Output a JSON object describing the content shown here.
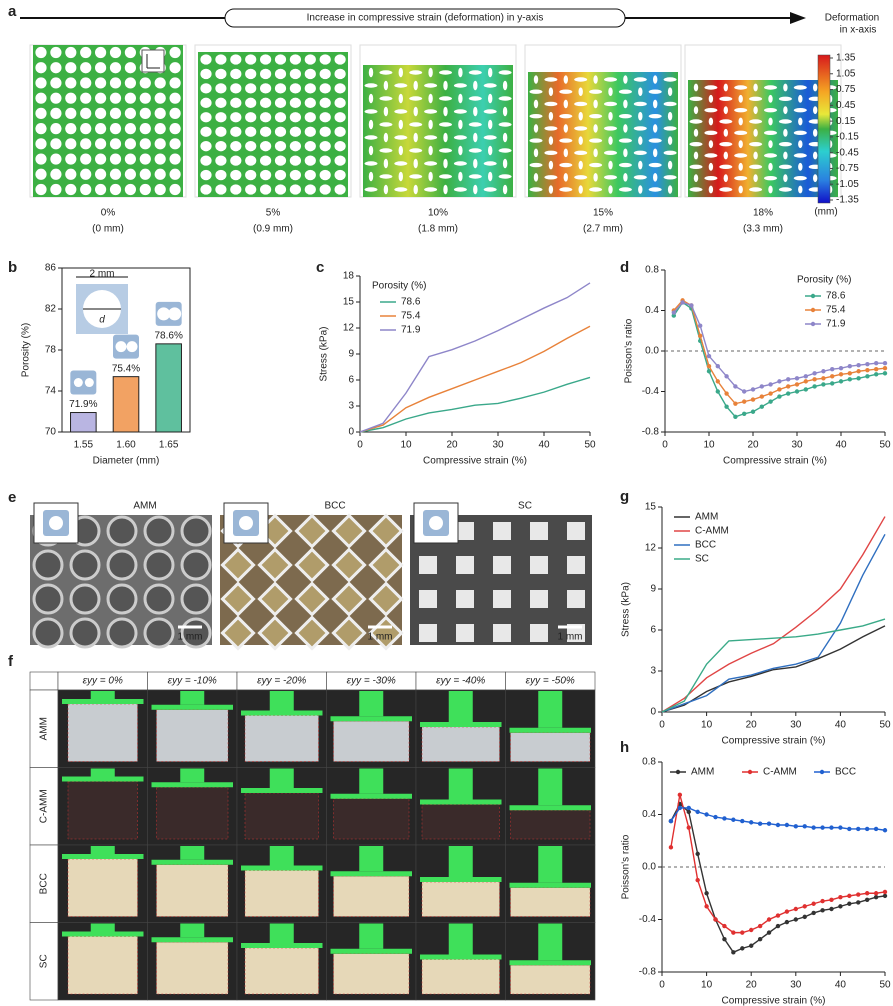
{
  "figure": {
    "panel_a": {
      "letter": "a",
      "arrow_label": "Increase in compressive strain (deformation) in y-axis",
      "colorbar_title_1": "Deformation",
      "colorbar_title_2": "in x-axis",
      "colorbar_ticks": [
        1.35,
        1.05,
        0.75,
        0.45,
        0.15,
        -0.15,
        -0.45,
        -0.75,
        -1.05,
        -1.35
      ],
      "colorbar_unit": "(mm)",
      "frames": [
        {
          "strain": "0%",
          "displacement": "(0 mm)"
        },
        {
          "strain": "5%",
          "displacement": "(0.9 mm)"
        },
        {
          "strain": "10%",
          "displacement": "(1.8 mm)"
        },
        {
          "strain": "15%",
          "displacement": "(2.7 mm)"
        },
        {
          "strain": "18%",
          "displacement": "(3.3 mm)"
        }
      ]
    },
    "panel_e": {
      "letter": "e",
      "photos": [
        {
          "label": "AMM",
          "scale": "1 mm"
        },
        {
          "label": "BCC",
          "scale": "1 mm"
        },
        {
          "label": "SC",
          "scale": "1 mm"
        }
      ]
    },
    "panel_f": {
      "letter": "f",
      "columns": [
        "εyy = 0%",
        "εyy = -10%",
        "εyy = -20%",
        "εyy = -30%",
        "εyy = -40%",
        "εyy = -50%"
      ],
      "rows": [
        "AMM",
        "C-AMM",
        "BCC",
        "SC"
      ]
    }
  },
  "chart_data": [
    {
      "type": "bar",
      "letter": "b",
      "categories": [
        "1.55",
        "1.60",
        "1.65"
      ],
      "values": [
        71.9,
        75.4,
        78.6
      ],
      "value_labels": [
        "71.9%",
        "75.4%",
        "78.6%"
      ],
      "colors": [
        "#b9b5e2",
        "#f2a263",
        "#5fc09e"
      ],
      "ylim": [
        70,
        86
      ],
      "yticks": [
        70,
        74,
        78,
        82,
        86
      ],
      "xlabel": "Diameter (mm)",
      "ylabel": "Porosity (%)",
      "inset_width_label": "2 mm",
      "inset_diameter_label": "d"
    },
    {
      "type": "line",
      "letter": "c",
      "x": [
        0,
        5,
        10,
        15,
        20,
        25,
        30,
        35,
        40,
        45,
        50
      ],
      "xlim": [
        0,
        50
      ],
      "xticks": [
        0,
        10,
        20,
        30,
        40,
        50
      ],
      "ylim": [
        0,
        18
      ],
      "yticks": [
        0,
        3,
        6,
        9,
        12,
        15,
        18
      ],
      "xlabel": "Compressive strain (%)",
      "ylabel": "Stress (kPa)",
      "legend": "upper left",
      "legend_title": "Porosity (%)",
      "markers": false,
      "series": [
        {
          "name": "78.6",
          "color": "#3aa88a",
          "values": [
            0,
            0.5,
            1.5,
            2.2,
            2.6,
            3.1,
            3.3,
            3.9,
            4.6,
            5.5,
            6.3
          ]
        },
        {
          "name": "75.4",
          "color": "#e8823a",
          "values": [
            0,
            0.8,
            2.8,
            4,
            5,
            6,
            7,
            8,
            9.3,
            10.8,
            12.2
          ]
        },
        {
          "name": "71.9",
          "color": "#8e86c9",
          "values": [
            0,
            1,
            4.5,
            8.7,
            9.5,
            10.5,
            11.7,
            13,
            14.3,
            15.5,
            17.2
          ]
        }
      ]
    },
    {
      "type": "line",
      "letter": "d",
      "x": [
        2,
        4,
        6,
        8,
        10,
        12,
        14,
        16,
        18,
        20,
        22,
        24,
        26,
        28,
        30,
        32,
        34,
        36,
        38,
        40,
        42,
        44,
        46,
        48,
        50
      ],
      "xlim": [
        0,
        50
      ],
      "xticks": [
        0,
        10,
        20,
        30,
        40,
        50
      ],
      "ylim": [
        -0.8,
        0.8
      ],
      "yticks": [
        -0.8,
        -0.4,
        {
          "value": 0,
          "label": "0.0"
        },
        0.4,
        0.8
      ],
      "xlabel": "Compressive strain (%)",
      "ylabel": "Poisson's ratio",
      "legend": "upper right",
      "legend_title": "Porosity (%)",
      "markers": true,
      "zero_line": true,
      "series": [
        {
          "name": "78.6",
          "color": "#3aa88a",
          "values": [
            0.35,
            0.48,
            0.42,
            0.1,
            -0.2,
            -0.4,
            -0.55,
            -0.65,
            -0.62,
            -0.6,
            -0.55,
            -0.5,
            -0.45,
            -0.42,
            -0.4,
            -0.38,
            -0.35,
            -0.33,
            -0.32,
            -0.3,
            -0.28,
            -0.27,
            -0.25,
            -0.23,
            -0.22
          ]
        },
        {
          "name": "75.4",
          "color": "#e8823a",
          "values": [
            0.4,
            0.5,
            0.45,
            0.15,
            -0.15,
            -0.3,
            -0.42,
            -0.52,
            -0.5,
            -0.48,
            -0.45,
            -0.42,
            -0.38,
            -0.35,
            -0.33,
            -0.3,
            -0.28,
            -0.27,
            -0.25,
            -0.23,
            -0.22,
            -0.2,
            -0.19,
            -0.18,
            -0.17
          ]
        },
        {
          "name": "71.9",
          "color": "#8e86c9",
          "values": [
            0.38,
            0.48,
            0.45,
            0.25,
            -0.05,
            -0.15,
            -0.25,
            -0.35,
            -0.4,
            -0.38,
            -0.35,
            -0.33,
            -0.3,
            -0.28,
            -0.27,
            -0.25,
            -0.22,
            -0.2,
            -0.18,
            -0.17,
            -0.15,
            -0.14,
            -0.13,
            -0.12,
            -0.12
          ]
        }
      ]
    },
    {
      "type": "line",
      "letter": "g",
      "x": [
        0,
        5,
        10,
        15,
        20,
        25,
        30,
        35,
        40,
        45,
        50
      ],
      "xlim": [
        0,
        50
      ],
      "xticks": [
        0,
        10,
        20,
        30,
        40,
        50
      ],
      "ylim": [
        0,
        15
      ],
      "yticks": [
        0,
        3,
        6,
        9,
        12,
        15
      ],
      "xlabel": "Compressive strain (%)",
      "ylabel": "Stress (kPa)",
      "legend": "upper left",
      "markers": false,
      "series": [
        {
          "name": "AMM",
          "color": "#333333",
          "values": [
            0,
            0.5,
            1.5,
            2.2,
            2.6,
            3.1,
            3.3,
            3.9,
            4.6,
            5.5,
            6.3
          ]
        },
        {
          "name": "C-AMM",
          "color": "#e04545",
          "values": [
            0,
            1,
            2.5,
            3.5,
            4.3,
            5,
            6.2,
            7.5,
            9,
            11.5,
            14.3
          ]
        },
        {
          "name": "BCC",
          "color": "#2f6fc0",
          "values": [
            0,
            0.6,
            1.2,
            2.4,
            2.7,
            3.2,
            3.5,
            4,
            6.5,
            10,
            13
          ]
        },
        {
          "name": "SC",
          "color": "#3aaa88",
          "values": [
            0,
            0.8,
            3.5,
            5.2,
            5.3,
            5.4,
            5.5,
            5.7,
            6,
            6.3,
            6.8
          ]
        }
      ]
    },
    {
      "type": "line",
      "letter": "h",
      "x": [
        2,
        4,
        6,
        8,
        10,
        12,
        14,
        16,
        18,
        20,
        22,
        24,
        26,
        28,
        30,
        32,
        34,
        36,
        38,
        40,
        42,
        44,
        46,
        48,
        50
      ],
      "xlim": [
        0,
        50
      ],
      "xticks": [
        0,
        10,
        20,
        30,
        40,
        50
      ],
      "ylim": [
        -0.8,
        0.8
      ],
      "yticks": [
        -0.8,
        -0.4,
        {
          "value": 0,
          "label": "0.0"
        },
        0.4,
        0.8
      ],
      "xlabel": "Compressive strain (%)",
      "ylabel": "Poisson's ratio",
      "legend": "top",
      "markers": true,
      "zero_line": true,
      "series": [
        {
          "name": "AMM",
          "color": "#333333",
          "values": [
            0.35,
            0.48,
            0.42,
            0.1,
            -0.2,
            -0.4,
            -0.55,
            -0.65,
            -0.62,
            -0.6,
            -0.55,
            -0.5,
            -0.45,
            -0.42,
            -0.4,
            -0.38,
            -0.35,
            -0.33,
            -0.32,
            -0.3,
            -0.28,
            -0.27,
            -0.25,
            -0.23,
            -0.22
          ]
        },
        {
          "name": "C-AMM",
          "color": "#e03030",
          "values": [
            0.15,
            0.55,
            0.3,
            -0.1,
            -0.3,
            -0.4,
            -0.45,
            -0.5,
            -0.5,
            -0.48,
            -0.45,
            -0.4,
            -0.37,
            -0.34,
            -0.32,
            -0.3,
            -0.28,
            -0.26,
            -0.25,
            -0.23,
            -0.22,
            -0.21,
            -0.2,
            -0.2,
            -0.19
          ]
        },
        {
          "name": "BCC",
          "color": "#2060d0",
          "values": [
            0.35,
            0.45,
            0.45,
            0.42,
            0.4,
            0.38,
            0.37,
            0.36,
            0.35,
            0.34,
            0.33,
            0.33,
            0.32,
            0.32,
            0.31,
            0.31,
            0.3,
            0.3,
            0.3,
            0.3,
            0.29,
            0.29,
            0.29,
            0.29,
            0.28
          ]
        }
      ]
    }
  ]
}
